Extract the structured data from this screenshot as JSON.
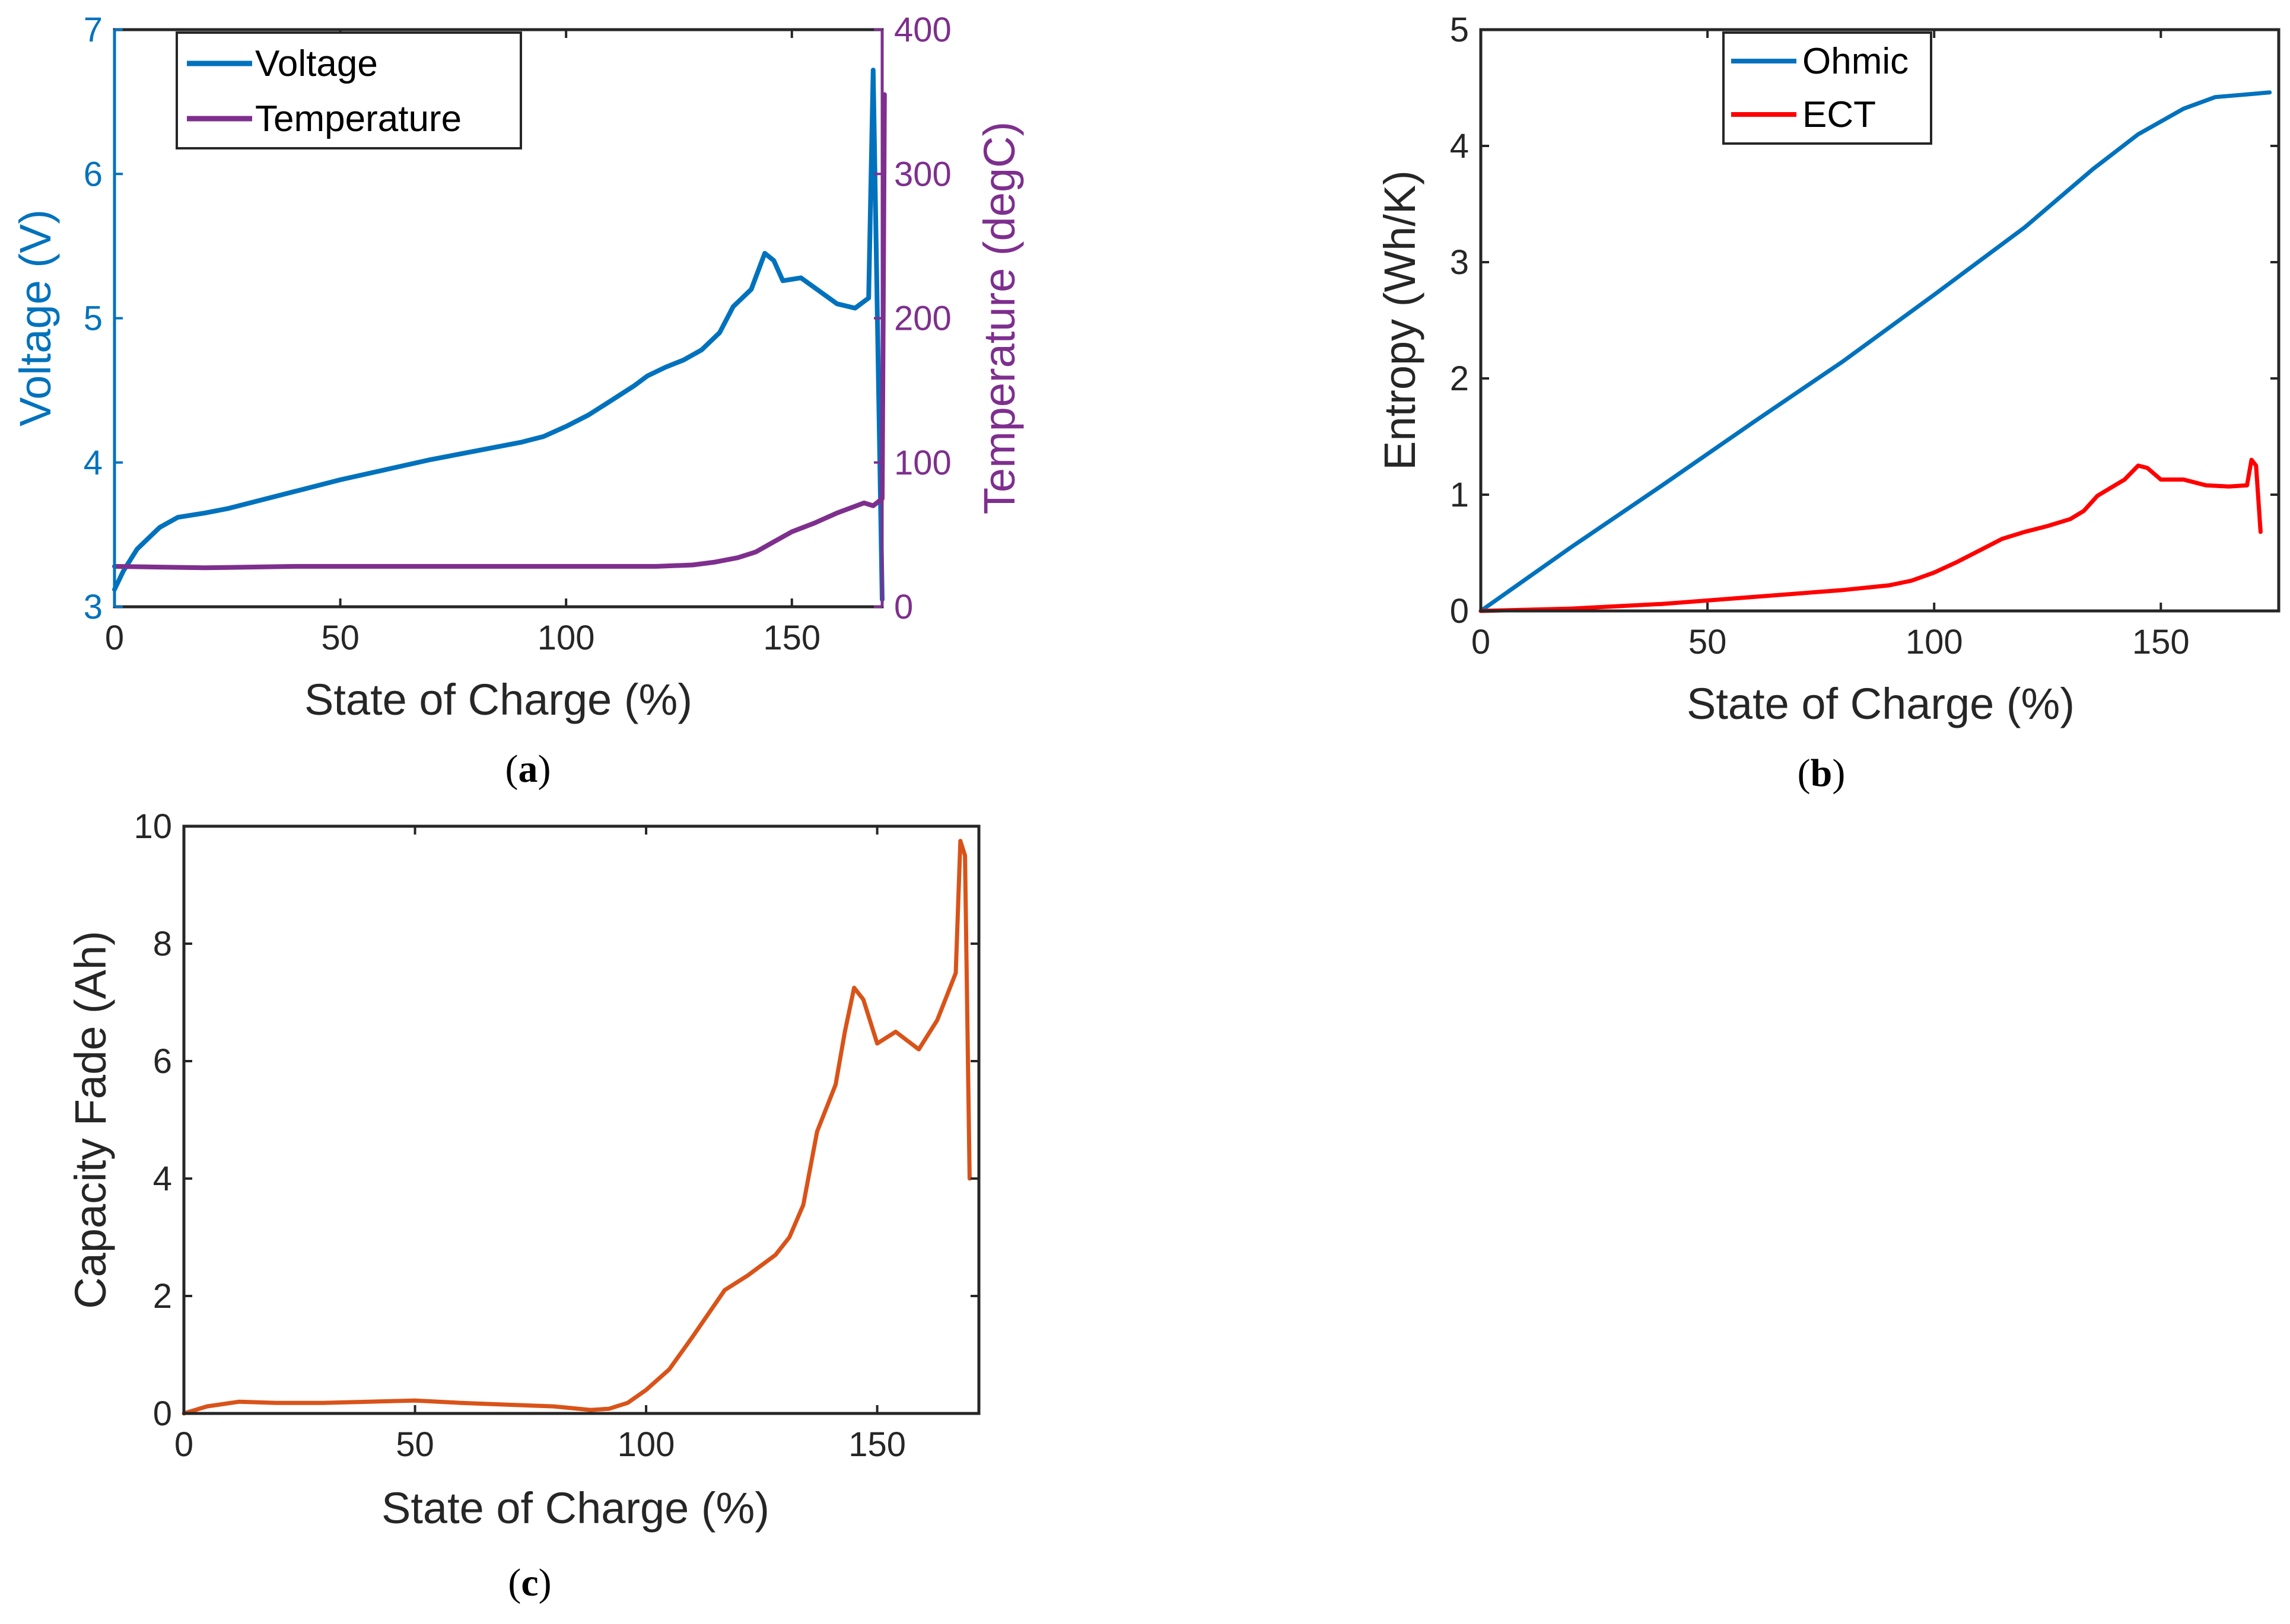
{
  "chart_data": [
    {
      "id": "a",
      "type": "line",
      "caption": {
        "open": "(",
        "letter": "a",
        "close": ")"
      },
      "xlabel": "State of Charge (%)",
      "xlim": [
        0,
        170
      ],
      "xticks": [
        0,
        50,
        100,
        150
      ],
      "ylabel_left": "Voltage (V)",
      "ylim_left": [
        3,
        7
      ],
      "yticks_left": [
        3,
        4,
        5,
        6,
        7
      ],
      "ylabel_right": "Temperature (degC)",
      "ylim_right": [
        0,
        400
      ],
      "yticks_right": [
        0,
        100,
        200,
        300,
        400
      ],
      "colors": {
        "left_axis": "#0072bd",
        "right_axis": "#7e2f8e"
      },
      "legend": {
        "position": "top-left",
        "entries": [
          "Voltage",
          "Temperature"
        ]
      },
      "series": [
        {
          "name": "Voltage",
          "axis": "left",
          "color": "#0072bd",
          "points": [
            [
              0,
              3.12
            ],
            [
              2,
              3.25
            ],
            [
              5,
              3.4
            ],
            [
              10,
              3.55
            ],
            [
              14,
              3.62
            ],
            [
              20,
              3.65
            ],
            [
              25,
              3.68
            ],
            [
              30,
              3.72
            ],
            [
              40,
              3.8
            ],
            [
              50,
              3.88
            ],
            [
              60,
              3.95
            ],
            [
              70,
              4.02
            ],
            [
              80,
              4.08
            ],
            [
              90,
              4.14
            ],
            [
              95,
              4.18
            ],
            [
              100,
              4.25
            ],
            [
              105,
              4.33
            ],
            [
              110,
              4.43
            ],
            [
              115,
              4.53
            ],
            [
              118,
              4.6
            ],
            [
              122,
              4.66
            ],
            [
              126,
              4.71
            ],
            [
              130,
              4.78
            ],
            [
              134,
              4.9
            ],
            [
              137,
              5.08
            ],
            [
              141,
              5.2
            ],
            [
              144,
              5.45
            ],
            [
              146,
              5.4
            ],
            [
              148,
              5.26
            ],
            [
              152,
              5.28
            ],
            [
              156,
              5.19
            ],
            [
              160,
              5.1
            ],
            [
              164,
              5.07
            ],
            [
              167,
              5.14
            ],
            [
              168,
              6.72
            ],
            [
              170,
              3.05
            ]
          ]
        },
        {
          "name": "Temperature",
          "axis": "right",
          "color": "#7e2f8e",
          "points": [
            [
              0,
              28
            ],
            [
              20,
              27
            ],
            [
              40,
              28
            ],
            [
              60,
              28
            ],
            [
              80,
              28
            ],
            [
              100,
              28
            ],
            [
              120,
              28
            ],
            [
              128,
              29
            ],
            [
              133,
              31
            ],
            [
              138,
              34
            ],
            [
              142,
              38
            ],
            [
              146,
              45
            ],
            [
              150,
              52
            ],
            [
              155,
              58
            ],
            [
              160,
              65
            ],
            [
              166,
              72
            ],
            [
              168,
              70
            ],
            [
              170,
              75
            ],
            [
              170.5,
              355
            ]
          ]
        }
      ]
    },
    {
      "id": "b",
      "type": "line",
      "caption": {
        "open": "(",
        "letter": "b",
        "close": ")"
      },
      "xlabel": "State of Charge (%)",
      "xlim": [
        0,
        176
      ],
      "xticks": [
        0,
        50,
        100,
        150
      ],
      "ylabel": "Entropy (Wh/K)",
      "ylim": [
        0,
        5
      ],
      "yticks": [
        0,
        1,
        2,
        3,
        4,
        5
      ],
      "legend": {
        "position": "top-center",
        "entries": [
          "Ohmic",
          "ECT"
        ]
      },
      "series": [
        {
          "name": "Ohmic",
          "color": "#0072bd",
          "points": [
            [
              0,
              0
            ],
            [
              20,
              0.55
            ],
            [
              40,
              1.08
            ],
            [
              60,
              1.62
            ],
            [
              80,
              2.15
            ],
            [
              100,
              2.72
            ],
            [
              120,
              3.3
            ],
            [
              135,
              3.8
            ],
            [
              145,
              4.1
            ],
            [
              155,
              4.32
            ],
            [
              162,
              4.42
            ],
            [
              168,
              4.44
            ],
            [
              174,
              4.46
            ]
          ]
        },
        {
          "name": "ECT",
          "color": "#ff0000",
          "points": [
            [
              0,
              0
            ],
            [
              20,
              0.02
            ],
            [
              40,
              0.06
            ],
            [
              60,
              0.12
            ],
            [
              80,
              0.18
            ],
            [
              90,
              0.22
            ],
            [
              95,
              0.26
            ],
            [
              100,
              0.33
            ],
            [
              105,
              0.42
            ],
            [
              110,
              0.52
            ],
            [
              115,
              0.62
            ],
            [
              120,
              0.68
            ],
            [
              125,
              0.73
            ],
            [
              130,
              0.79
            ],
            [
              133,
              0.86
            ],
            [
              136,
              0.99
            ],
            [
              139,
              1.06
            ],
            [
              142,
              1.13
            ],
            [
              145,
              1.25
            ],
            [
              147,
              1.23
            ],
            [
              150,
              1.13
            ],
            [
              155,
              1.13
            ],
            [
              160,
              1.08
            ],
            [
              165,
              1.07
            ],
            [
              169,
              1.08
            ],
            [
              170,
              1.3
            ],
            [
              171,
              1.25
            ],
            [
              172,
              0.68
            ]
          ]
        }
      ]
    },
    {
      "id": "c",
      "type": "line",
      "caption": {
        "open": "(",
        "letter": "c",
        "close": ")"
      },
      "xlabel": "State of Charge (%)",
      "xlim": [
        0,
        172
      ],
      "xticks": [
        0,
        50,
        100,
        150
      ],
      "ylabel": "Capacity Fade (Ah)",
      "ylim": [
        0,
        10
      ],
      "yticks": [
        0,
        2,
        4,
        6,
        8,
        10
      ],
      "series": [
        {
          "name": "Capacity Fade",
          "color": "#d95319",
          "points": [
            [
              0,
              0
            ],
            [
              5,
              0.12
            ],
            [
              12,
              0.2
            ],
            [
              20,
              0.18
            ],
            [
              30,
              0.18
            ],
            [
              40,
              0.2
            ],
            [
              50,
              0.22
            ],
            [
              60,
              0.18
            ],
            [
              70,
              0.15
            ],
            [
              80,
              0.12
            ],
            [
              88,
              0.06
            ],
            [
              92,
              0.08
            ],
            [
              96,
              0.18
            ],
            [
              100,
              0.4
            ],
            [
              105,
              0.75
            ],
            [
              110,
              1.3
            ],
            [
              117,
              2.1
            ],
            [
              122,
              2.35
            ],
            [
              128,
              2.7
            ],
            [
              131,
              3.0
            ],
            [
              134,
              3.55
            ],
            [
              137,
              4.8
            ],
            [
              141,
              5.6
            ],
            [
              143,
              6.5
            ],
            [
              145,
              7.25
            ],
            [
              147,
              7.05
            ],
            [
              150,
              6.3
            ],
            [
              154,
              6.5
            ],
            [
              159,
              6.2
            ],
            [
              163,
              6.7
            ],
            [
              167,
              7.5
            ],
            [
              168,
              9.75
            ],
            [
              169,
              9.5
            ],
            [
              170,
              4.0
            ]
          ]
        }
      ]
    }
  ]
}
